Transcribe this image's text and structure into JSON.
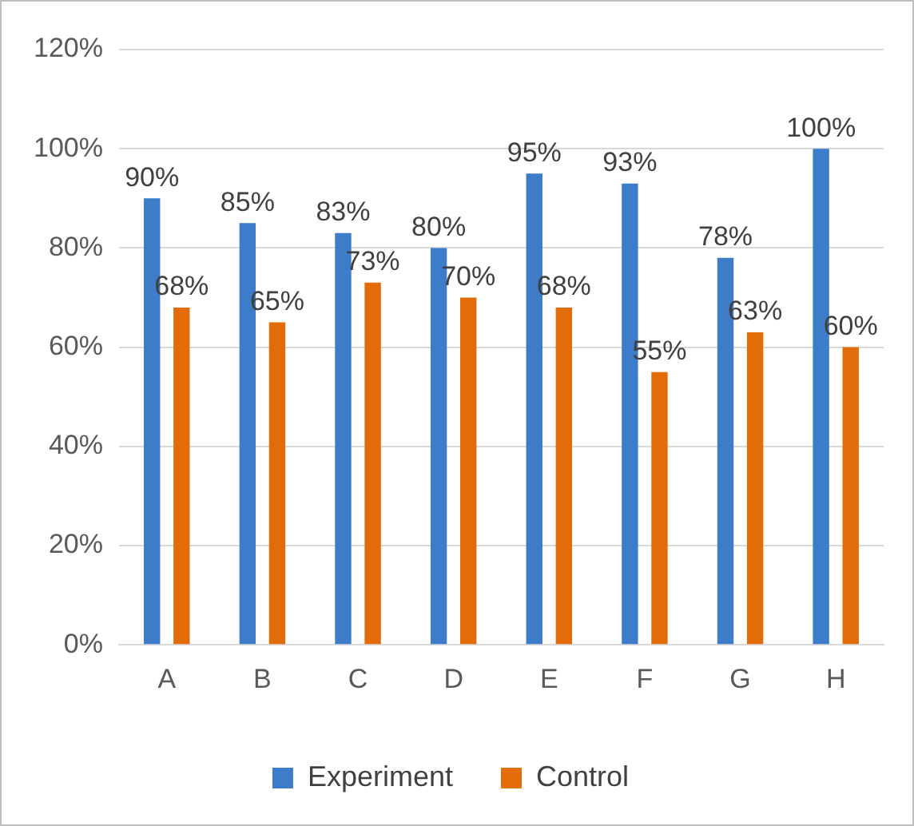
{
  "chart_data": {
    "type": "bar",
    "categories": [
      "A",
      "B",
      "C",
      "D",
      "E",
      "F",
      "G",
      "H"
    ],
    "series": [
      {
        "name": "Experiment",
        "color": "#3d7cc9",
        "values": [
          90,
          85,
          83,
          80,
          95,
          93,
          78,
          100
        ],
        "value_labels": [
          "90%",
          "85%",
          "83%",
          "80%",
          "95%",
          "93%",
          "78%",
          "100%"
        ]
      },
      {
        "name": "Control",
        "color": "#e36c0a",
        "values": [
          68,
          65,
          73,
          70,
          68,
          55,
          63,
          60
        ],
        "value_labels": [
          "68%",
          "65%",
          "73%",
          "70%",
          "68%",
          "55%",
          "63%",
          "60%"
        ]
      }
    ],
    "ylim": [
      0,
      120
    ],
    "yticks": [
      {
        "value": 0,
        "label": "0%"
      },
      {
        "value": 20,
        "label": "20%"
      },
      {
        "value": 40,
        "label": "40%"
      },
      {
        "value": 60,
        "label": "60%"
      },
      {
        "value": 80,
        "label": "80%"
      },
      {
        "value": 100,
        "label": "100%"
      },
      {
        "value": 120,
        "label": "120%"
      }
    ],
    "grid": "y",
    "legend": "bottom"
  }
}
